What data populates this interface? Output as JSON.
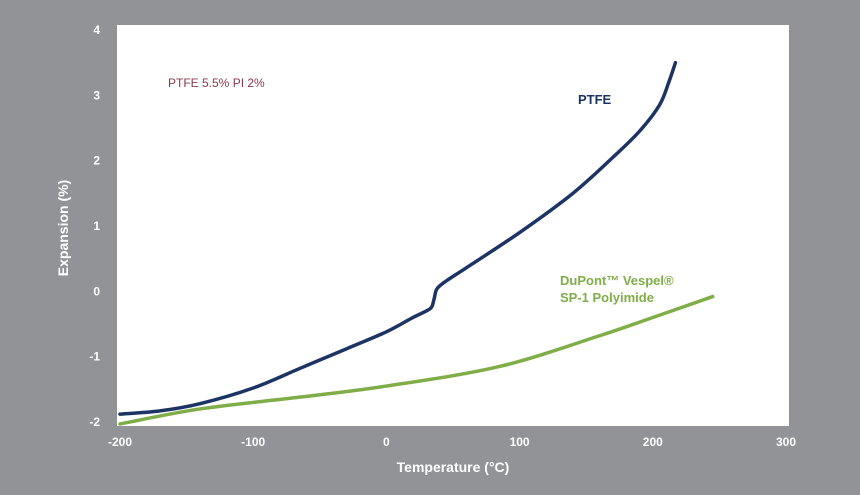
{
  "chart_data": {
    "type": "line",
    "xlabel": "Temperature (°C)",
    "ylabel": "Expansion (%)",
    "xlim": [
      -200,
      300
    ],
    "ylim": [
      -2,
      4
    ],
    "x_ticks": [
      "-200",
      "-100",
      "0",
      "100",
      "200",
      "300"
    ],
    "y_ticks": [
      "4",
      "3",
      "2",
      "1",
      "0",
      "-1",
      "-2"
    ],
    "grid": false,
    "annotation": "PTFE 5.5% PI 2%",
    "series": [
      {
        "name": "PTFE",
        "label_lines": [
          "PTFE"
        ],
        "color": "#1c3464",
        "x": [
          -200,
          -170,
          -140,
          -100,
          -65,
          -30,
          0,
          20,
          30,
          34,
          36,
          38,
          45,
          60,
          100,
          140,
          170,
          190,
          205,
          212,
          217
        ],
        "y": [
          -1.88,
          -1.83,
          -1.72,
          -1.48,
          -1.18,
          -0.88,
          -0.62,
          -0.4,
          -0.3,
          -0.24,
          -0.1,
          0.04,
          0.16,
          0.36,
          0.9,
          1.5,
          2.05,
          2.45,
          2.85,
          3.2,
          3.5
        ]
      },
      {
        "name": "DuPont™ Vespel® SP-1 Polyimide",
        "label_lines": [
          "DuPont™ Vespel®",
          "SP-1 Polyimide"
        ],
        "color": "#7fad48",
        "x": [
          -200,
          -140,
          -65,
          0,
          85,
          160,
          200,
          245
        ],
        "y": [
          -2.03,
          -1.8,
          -1.62,
          -1.45,
          -1.15,
          -0.68,
          -0.4,
          -0.08
        ]
      }
    ]
  },
  "colors": {
    "background": "#929397",
    "plot_area": "#ffffff",
    "annotation": "#8b3a4a"
  }
}
